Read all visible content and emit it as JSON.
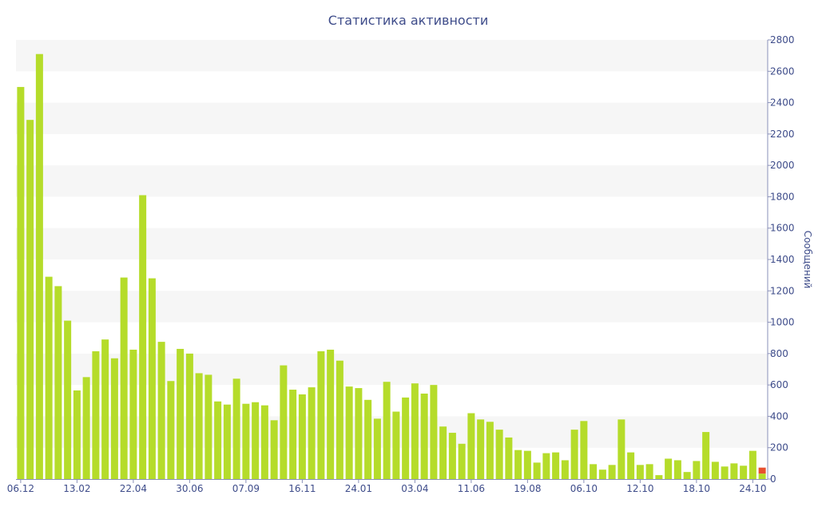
{
  "chart_data": {
    "type": "bar",
    "title": "Статистика активности",
    "ylabel": "Сообщений",
    "y_axis_position": "right",
    "ylim": [
      0,
      2800
    ],
    "y_ticks": [
      0,
      200,
      400,
      600,
      800,
      1000,
      1200,
      1400,
      1600,
      1800,
      2000,
      2200,
      2400,
      2600,
      2800
    ],
    "x_tick_labels": [
      {
        "label": "06.12",
        "index": 0
      },
      {
        "label": "13.02",
        "index": 6
      },
      {
        "label": "22.04",
        "index": 12
      },
      {
        "label": "30.06",
        "index": 18
      },
      {
        "label": "07.09",
        "index": 24
      },
      {
        "label": "16.11",
        "index": 30
      },
      {
        "label": "24.01",
        "index": 36
      },
      {
        "label": "03.04",
        "index": 42
      },
      {
        "label": "11.06",
        "index": 48
      },
      {
        "label": "19.08",
        "index": 54
      },
      {
        "label": "06.10",
        "index": 60
      },
      {
        "label": "12.10",
        "index": 66
      },
      {
        "label": "18.10",
        "index": 72
      },
      {
        "label": "24.10",
        "index": 78
      }
    ],
    "grid": "alternating horizontal bands",
    "bar_color": "#b5dc2a",
    "highlight_color": "#e8502e",
    "values": [
      2500,
      2290,
      2710,
      1290,
      1230,
      1010,
      565,
      650,
      815,
      890,
      770,
      1285,
      825,
      1810,
      1280,
      875,
      625,
      830,
      800,
      675,
      665,
      495,
      475,
      640,
      480,
      490,
      470,
      375,
      725,
      570,
      540,
      585,
      815,
      825,
      755,
      590,
      580,
      505,
      385,
      620,
      430,
      520,
      610,
      545,
      600,
      335,
      295,
      225,
      420,
      380,
      365,
      315,
      265,
      185,
      180,
      105,
      165,
      170,
      120,
      315,
      370,
      95,
      60,
      90,
      380,
      170,
      90,
      95,
      25,
      130,
      120,
      45,
      115,
      300,
      110,
      80,
      100,
      85,
      180
    ],
    "partial_last": {
      "value": 35,
      "highlight_value": 38
    }
  }
}
